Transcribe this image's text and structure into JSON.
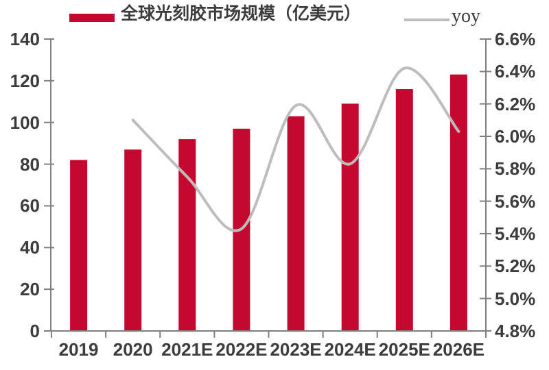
{
  "chart_data": {
    "type": "bar",
    "subtype": "combo-bar-line",
    "title": "",
    "categories": [
      "2019",
      "2020",
      "2021E",
      "2022E",
      "2023E",
      "2024E",
      "2025E",
      "2026E"
    ],
    "series": [
      {
        "name": "全球光刻胶市场规模（亿美元）",
        "type": "bar",
        "axis": "left",
        "color": "#C5082D",
        "values": [
          82,
          87,
          92,
          97,
          103,
          109,
          116,
          123
        ]
      },
      {
        "name": "yoy",
        "type": "line",
        "axis": "right",
        "color": "#BDBDBD",
        "unit": "%",
        "values": [
          null,
          6.1,
          5.75,
          5.43,
          6.19,
          5.83,
          6.42,
          6.03
        ]
      }
    ],
    "axes": {
      "left": {
        "min": 0,
        "max": 140,
        "step": 20,
        "tick_labels": [
          "140",
          "120",
          "100",
          "80",
          "60",
          "40",
          "20",
          "0"
        ]
      },
      "right": {
        "min": 4.8,
        "max": 6.6,
        "step": 0.2,
        "unit": "%",
        "tick_labels": [
          "6.6%",
          "6.4%",
          "6.2%",
          "6.0%",
          "5.8%",
          "5.6%",
          "5.4%",
          "5.2%",
          "5.0%",
          "4.8%"
        ]
      }
    },
    "grid": false,
    "legend_position": "top",
    "colors": {
      "axis": "#7F7F7F",
      "text": "#3C3C3C",
      "background": "#FFFFFF"
    }
  }
}
